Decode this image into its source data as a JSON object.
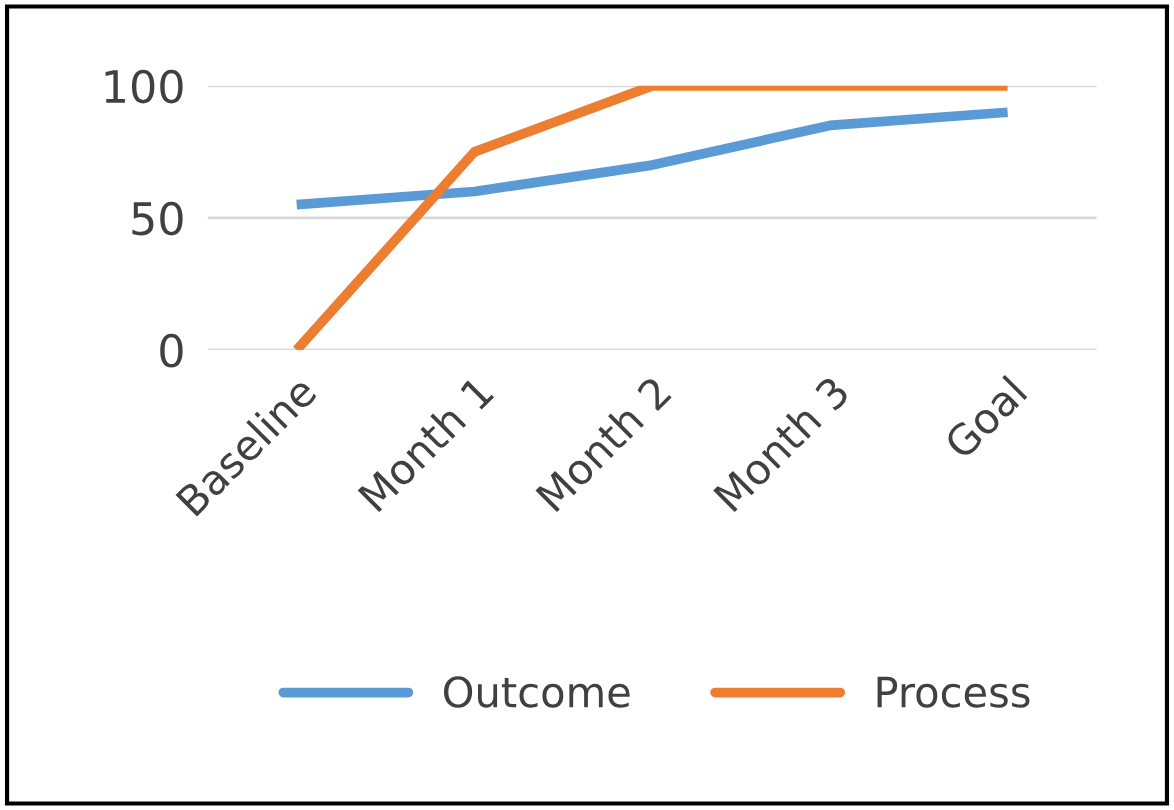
{
  "chart_data": {
    "type": "line",
    "categories": [
      "Baseline",
      "Month 1",
      "Month 2",
      "Month 3",
      "Goal"
    ],
    "series": [
      {
        "name": "Outcome",
        "color": "#5b9bd5",
        "values": [
          55,
          60,
          70,
          85,
          90
        ]
      },
      {
        "name": "Process",
        "color": "#ed7d31",
        "values": [
          0,
          75,
          100,
          100,
          100
        ]
      }
    ],
    "ylim": [
      0,
      100
    ],
    "yticks": [
      0,
      50,
      100
    ],
    "grid": "y",
    "legend": "bottom",
    "marker": "none",
    "line_style": "solid"
  }
}
